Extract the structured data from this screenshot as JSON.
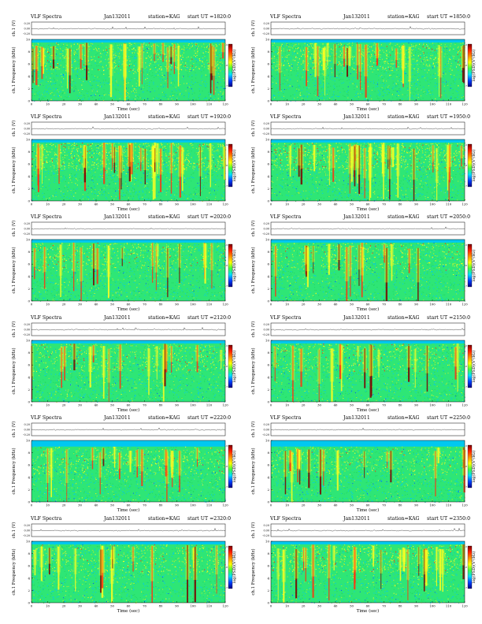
{
  "figure": {
    "header": {
      "title": "VLF Spectra",
      "date": "Jan132011",
      "station": "station=KAG",
      "start_prefix": "start  UT  ="
    },
    "labels": {
      "ch_label": "ch.1 (V)",
      "freq_label": "ch.1 Frequency (kHz)",
      "time_label": "Time (sec)",
      "colorbar_label": "log(PSD)(V²/Hz)"
    }
  },
  "chart_data": [
    {
      "type": "heatmap",
      "title": "VLF Spectra",
      "start_ut": "1820:0",
      "xlim": [
        0,
        120
      ],
      "xticks": [
        0,
        10,
        20,
        30,
        40,
        50,
        60,
        70,
        80,
        90,
        100,
        110,
        120
      ],
      "ylim": [
        0,
        10
      ],
      "yticks": [
        0,
        2,
        4,
        6,
        8,
        10
      ],
      "waveform_ylim": [
        -0.2,
        0.2
      ],
      "waveform_yticks": [
        "0.20",
        "0.00",
        "-0.20"
      ],
      "colorbar_ticks": [
        "-5",
        "-6",
        "-7"
      ],
      "activity": "high",
      "upper_cutoff_khz": 9.5
    },
    {
      "type": "heatmap",
      "title": "VLF Spectra",
      "start_ut": "1850:0",
      "xlim": [
        0,
        120
      ],
      "xticks": [
        0,
        10,
        20,
        30,
        40,
        50,
        60,
        70,
        80,
        90,
        100,
        110,
        120
      ],
      "ylim": [
        0,
        10
      ],
      "yticks": [
        0,
        2,
        4,
        6,
        8,
        10
      ],
      "waveform_ylim": [
        -0.2,
        0.2
      ],
      "waveform_yticks": [
        "0.20",
        "0.00",
        "-0.20"
      ],
      "colorbar_ticks": [
        "-5",
        "-6",
        "-7"
      ],
      "activity": "high",
      "upper_cutoff_khz": 9.5
    },
    {
      "type": "heatmap",
      "title": "VLF Spectra",
      "start_ut": "1920:0",
      "xlim": [
        0,
        120
      ],
      "xticks": [
        0,
        10,
        20,
        30,
        40,
        50,
        60,
        70,
        80,
        90,
        100,
        110,
        120
      ],
      "ylim": [
        0,
        10
      ],
      "yticks": [
        0,
        2,
        4,
        6,
        8,
        10
      ],
      "waveform_ylim": [
        -0.2,
        0.2
      ],
      "waveform_yticks": [
        "0.20",
        "0.00",
        "-0.20"
      ],
      "colorbar_ticks": [
        "-5",
        "-6",
        "-7"
      ],
      "activity": "very-high",
      "upper_cutoff_khz": 9.5
    },
    {
      "type": "heatmap",
      "title": "VLF Spectra",
      "start_ut": "1950:0",
      "xlim": [
        0,
        120
      ],
      "xticks": [
        0,
        10,
        20,
        30,
        40,
        50,
        60,
        70,
        80,
        90,
        100,
        110,
        120
      ],
      "ylim": [
        0,
        10
      ],
      "yticks": [
        0,
        2,
        4,
        6,
        8,
        10
      ],
      "waveform_ylim": [
        -0.2,
        0.2
      ],
      "waveform_yticks": [
        "0.20",
        "0.00",
        "-0.20"
      ],
      "colorbar_ticks": [
        "-5",
        "-6",
        "-7"
      ],
      "activity": "very-high",
      "upper_cutoff_khz": 9.5
    },
    {
      "type": "heatmap",
      "title": "VLF Spectra",
      "start_ut": "2020:0",
      "xlim": [
        0,
        120
      ],
      "xticks": [
        0,
        10,
        20,
        30,
        40,
        50,
        60,
        70,
        80,
        90,
        100,
        110,
        120
      ],
      "ylim": [
        0,
        10
      ],
      "yticks": [
        0,
        2,
        4,
        6,
        8,
        10
      ],
      "waveform_ylim": [
        -0.2,
        0.2
      ],
      "waveform_yticks": [
        "0.20",
        "0.00",
        "-0.20"
      ],
      "colorbar_ticks": [
        "-5",
        "-6",
        "-7"
      ],
      "activity": "medium",
      "upper_cutoff_khz": 9.5
    },
    {
      "type": "heatmap",
      "title": "VLF Spectra",
      "start_ut": "2050:0",
      "xlim": [
        0,
        120
      ],
      "xticks": [
        0,
        10,
        20,
        30,
        40,
        50,
        60,
        70,
        80,
        90,
        100,
        110,
        120
      ],
      "ylim": [
        0,
        10
      ],
      "yticks": [
        0,
        2,
        4,
        6,
        8,
        10
      ],
      "waveform_ylim": [
        -0.2,
        0.2
      ],
      "waveform_yticks": [
        "0.20",
        "0.00",
        "-0.20"
      ],
      "colorbar_ticks": [
        "-5",
        "-6",
        "-7"
      ],
      "activity": "medium",
      "upper_cutoff_khz": 9.5
    },
    {
      "type": "heatmap",
      "title": "VLF Spectra",
      "start_ut": "2120:0",
      "xlim": [
        0,
        120
      ],
      "xticks": [
        0,
        10,
        20,
        30,
        40,
        50,
        60,
        70,
        80,
        90,
        100,
        110,
        120
      ],
      "ylim": [
        0,
        10
      ],
      "yticks": [
        0,
        2,
        4,
        6,
        8,
        10
      ],
      "waveform_ylim": [
        -0.2,
        0.2
      ],
      "waveform_yticks": [
        "0.20",
        "0.00",
        "-0.20"
      ],
      "colorbar_ticks": [
        "-5",
        "-6",
        "-7"
      ],
      "activity": "medium",
      "upper_cutoff_khz": 9.5
    },
    {
      "type": "heatmap",
      "title": "VLF Spectra",
      "start_ut": "2150:0",
      "xlim": [
        0,
        120
      ],
      "xticks": [
        0,
        10,
        20,
        30,
        40,
        50,
        60,
        70,
        80,
        90,
        100,
        110,
        120
      ],
      "ylim": [
        0,
        10
      ],
      "yticks": [
        0,
        2,
        4,
        6,
        8,
        10
      ],
      "waveform_ylim": [
        -0.2,
        0.2
      ],
      "waveform_yticks": [
        "0.20",
        "0.00",
        "-0.20"
      ],
      "colorbar_ticks": [
        "-5",
        "-6",
        "-7"
      ],
      "activity": "medium",
      "upper_cutoff_khz": 9.5
    },
    {
      "type": "heatmap",
      "title": "VLF Spectra",
      "start_ut": "2220:0",
      "xlim": [
        0,
        120
      ],
      "xticks": [
        0,
        10,
        20,
        30,
        40,
        50,
        60,
        70,
        80,
        90,
        100,
        110,
        120
      ],
      "ylim": [
        0,
        10
      ],
      "yticks": [
        0,
        2,
        4,
        6,
        8,
        10
      ],
      "waveform_ylim": [
        -0.2,
        0.2
      ],
      "waveform_yticks": [
        "0.20",
        "0.00",
        "-0.20"
      ],
      "colorbar_ticks": [
        "-5",
        "-6",
        "-7"
      ],
      "activity": "medium",
      "upper_cutoff_khz": 9.0
    },
    {
      "type": "heatmap",
      "title": "VLF Spectra",
      "start_ut": "2250:0",
      "xlim": [
        0,
        120
      ],
      "xticks": [
        0,
        10,
        20,
        30,
        40,
        50,
        60,
        70,
        80,
        90,
        100,
        110,
        120
      ],
      "ylim": [
        0,
        10
      ],
      "yticks": [
        0,
        2,
        4,
        6,
        8,
        10
      ],
      "waveform_ylim": [
        -0.2,
        0.2
      ],
      "waveform_yticks": [
        "0.20",
        "0.00",
        "-0.20"
      ],
      "colorbar_ticks": [
        "-5",
        "-6",
        "-7"
      ],
      "activity": "medium",
      "upper_cutoff_khz": 9.0
    },
    {
      "type": "heatmap",
      "title": "VLF Spectra",
      "start_ut": "2320:0",
      "xlim": [
        0,
        120
      ],
      "xticks": [
        0,
        10,
        20,
        30,
        40,
        50,
        60,
        70,
        80,
        90,
        100,
        110,
        120
      ],
      "ylim": [
        0,
        10
      ],
      "yticks": [
        0,
        2,
        4,
        6,
        8,
        10
      ],
      "waveform_ylim": [
        -0.2,
        0.2
      ],
      "waveform_yticks": [
        "0.20",
        "0.00",
        "-0.20"
      ],
      "colorbar_ticks": [
        "-5",
        "-6",
        "-7"
      ],
      "activity": "medium",
      "upper_cutoff_khz": 9.5
    },
    {
      "type": "heatmap",
      "title": "VLF Spectra",
      "start_ut": "2350:0",
      "xlim": [
        0,
        120
      ],
      "xticks": [
        0,
        10,
        20,
        30,
        40,
        50,
        60,
        70,
        80,
        90,
        100,
        110,
        120
      ],
      "ylim": [
        0,
        10
      ],
      "yticks": [
        0,
        2,
        4,
        6,
        8,
        10
      ],
      "waveform_ylim": [
        -0.2,
        0.2
      ],
      "waveform_yticks": [
        "0.20",
        "0.00",
        "-0.20"
      ],
      "colorbar_ticks": [
        "-5",
        "-6",
        "-7"
      ],
      "activity": "high",
      "upper_cutoff_khz": 9.5
    }
  ],
  "colors": {
    "background": "#00c8f0",
    "base": "#2ee676",
    "mid": "#b8f030",
    "high": "#ffff20",
    "peak": "#ff3010",
    "max": "#7a0000",
    "low": "#0050ff",
    "colorbar": [
      "#7a0000",
      "#ff2000",
      "#ff9000",
      "#ffff00",
      "#40ff40",
      "#00e0ff",
      "#0040ff",
      "#000080"
    ]
  }
}
